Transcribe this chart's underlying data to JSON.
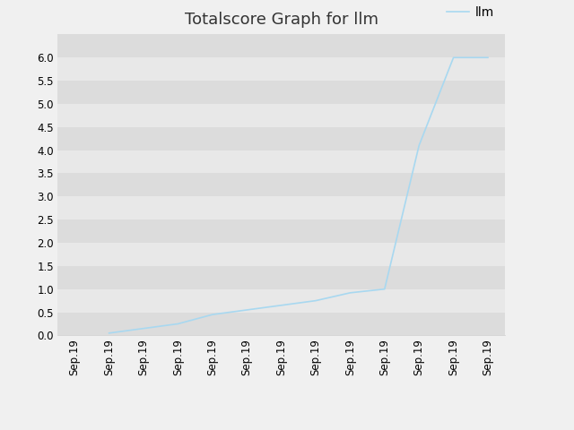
{
  "title": "Totalscore Graph for llm",
  "legend_label": "llm",
  "line_color": "#a8d8f0",
  "plot_bg_color": "#e8e8e8",
  "fig_bg_color": "#f0f0f0",
  "band_colors": [
    "#dcdcdc",
    "#e8e8e8"
  ],
  "ylim": [
    0.0,
    6.5
  ],
  "ytick_vals": [
    0.0,
    0.5,
    1.0,
    1.5,
    2.0,
    2.5,
    3.0,
    3.5,
    4.0,
    4.5,
    5.0,
    5.5,
    6.0
  ],
  "x_indices": [
    0,
    1,
    2,
    3,
    4,
    5,
    6,
    7,
    8,
    9,
    10,
    11
  ],
  "y_values": [
    0.05,
    0.15,
    0.25,
    0.45,
    0.55,
    0.65,
    0.75,
    0.92,
    1.0,
    4.1,
    6.0,
    6.0
  ],
  "num_xticks": 13,
  "tick_label": "Sep.19",
  "line_width": 1.2,
  "title_fontsize": 13,
  "legend_fontsize": 10,
  "tick_fontsize": 8.5
}
